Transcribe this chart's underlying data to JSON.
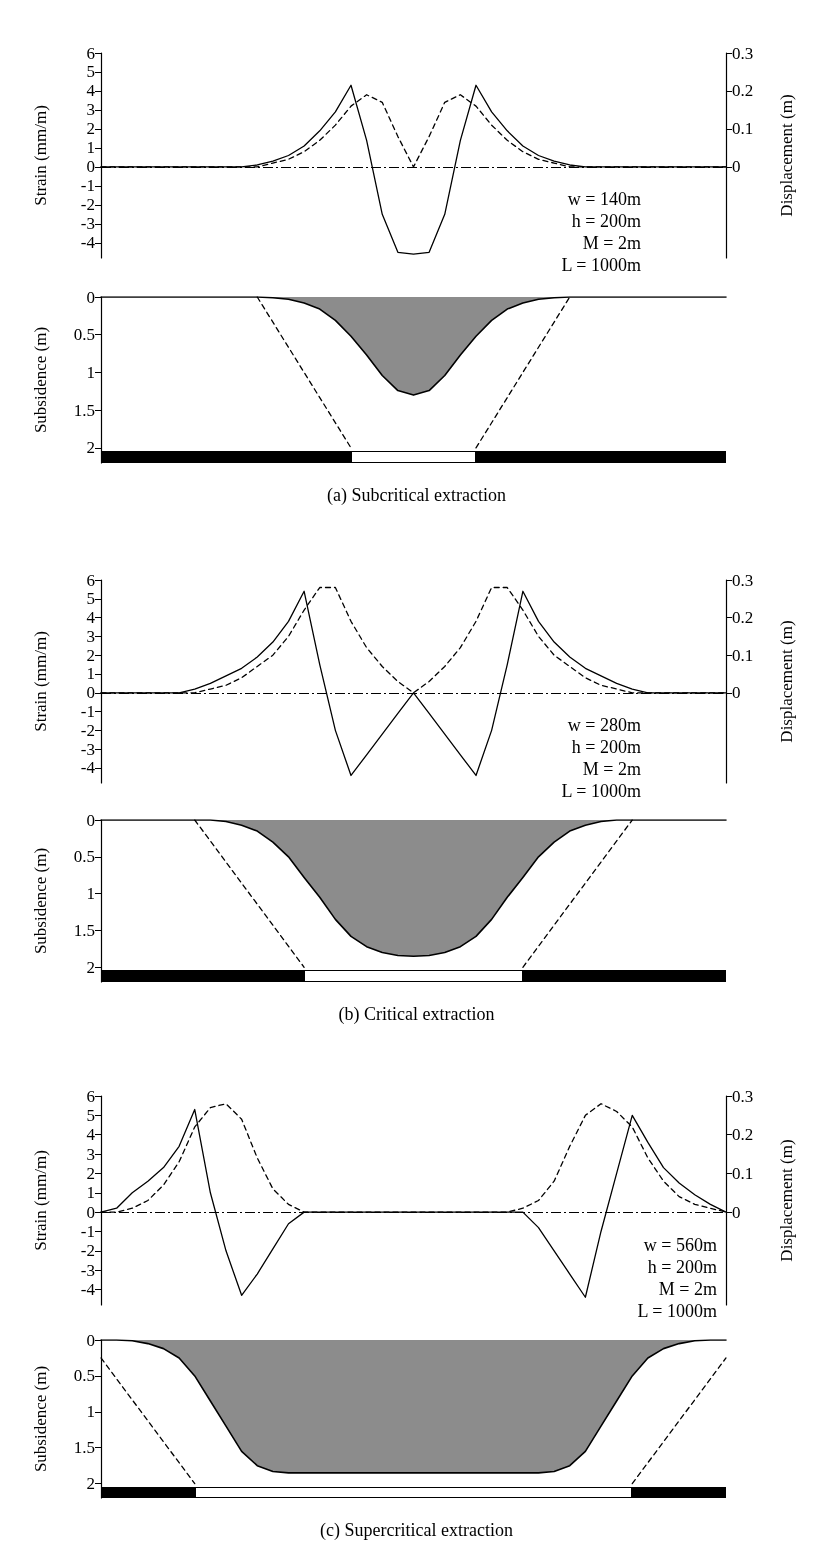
{
  "chart_data": [
    {
      "type": "line",
      "ylabel": "Strain (mm/m)",
      "y2label": "Displacement (m)",
      "categories": [
        null,
        null,
        null,
        null,
        null,
        null,
        null,
        null,
        null,
        null,
        null,
        null,
        null,
        null,
        null,
        null,
        null,
        null,
        null,
        null,
        null,
        null,
        null,
        null,
        null,
        null,
        null,
        null,
        null,
        null,
        null,
        null,
        null,
        null,
        null,
        null,
        null,
        null,
        null,
        null,
        null
      ],
      "series": [
        {
          "type": "line",
          "color": "#000000",
          "line_style": "solid",
          "values": [
            0,
            0,
            0,
            0,
            0,
            0,
            0,
            0,
            0,
            0,
            0.1,
            0.3,
            0.6,
            1.1,
            1.9,
            2.9,
            4.3,
            1.4,
            -2.5,
            -4.5,
            -4.6,
            -4.5,
            -2.5,
            1.4,
            4.3,
            2.9,
            1.9,
            1.1,
            0.6,
            0.3,
            0.1,
            0,
            0,
            0,
            0,
            0,
            0,
            0,
            0,
            0,
            0
          ]
        },
        {
          "type": "line",
          "color": "#000000",
          "line_style": "dashed",
          "axis": "y2",
          "values": [
            0,
            0,
            0,
            0,
            0,
            0,
            0,
            0,
            0,
            0,
            0,
            0.01,
            0.02,
            0.04,
            0.07,
            0.11,
            0.16,
            0.19,
            0.17,
            0.08,
            0,
            0.08,
            0.17,
            0.19,
            0.16,
            0.11,
            0.07,
            0.04,
            0.02,
            0.01,
            0,
            0,
            0,
            0,
            0,
            0,
            0,
            0,
            0,
            0,
            0
          ]
        }
      ],
      "ylim": [
        -4.8,
        6
      ],
      "yticks": [
        -4,
        -3,
        -2,
        -1,
        0,
        1,
        2,
        3,
        4,
        5,
        6
      ],
      "y2lim": [
        -0.24,
        0.3
      ],
      "y2ticks": [
        0,
        0.1,
        0.2,
        0.3
      ],
      "ref_lines": [
        {
          "axis": "y",
          "value": 0,
          "line_style": "dashed"
        }
      ],
      "annotations": [
        "w = 140m",
        "h = 200m",
        "M = 2m",
        "L = 1000m"
      ],
      "tick_labels": "y",
      "marker": "none",
      "grid": false
    },
    {
      "type": "area",
      "title": "(a) Subcritical extraction",
      "ylabel": "Subsidence (m)",
      "categories": [
        null,
        null,
        null,
        null,
        null,
        null,
        null,
        null,
        null,
        null,
        null,
        null,
        null,
        null,
        null,
        null,
        null,
        null,
        null,
        null,
        null,
        null,
        null,
        null,
        null,
        null,
        null,
        null,
        null,
        null,
        null,
        null,
        null,
        null,
        null,
        null,
        null,
        null,
        null,
        null,
        null
      ],
      "series": [
        {
          "type": "area",
          "color": "#8c8c8c",
          "values": [
            0,
            0,
            0,
            0,
            0,
            0,
            0,
            0,
            0,
            0,
            0,
            0.01,
            0.03,
            0.08,
            0.16,
            0.31,
            0.52,
            0.77,
            1.04,
            1.24,
            1.3,
            1.24,
            1.04,
            0.77,
            0.52,
            0.31,
            0.16,
            0.08,
            0.03,
            0.01,
            0,
            0,
            0,
            0,
            0,
            0,
            0,
            0,
            0,
            0,
            0
          ]
        },
        {
          "type": "line",
          "color": "#000000",
          "line_style": "dashed",
          "values": [
            null,
            null,
            null,
            null,
            null,
            null,
            null,
            null,
            null,
            null,
            0,
            null,
            null,
            null,
            null,
            null,
            2,
            null,
            null,
            null,
            null,
            null,
            null,
            null,
            null,
            null,
            null,
            null,
            null,
            null,
            null,
            null,
            null,
            null,
            null,
            null,
            null,
            null,
            null,
            null,
            null
          ]
        },
        {
          "type": "line",
          "color": "#000000",
          "line_style": "dashed",
          "values": [
            null,
            null,
            null,
            null,
            null,
            null,
            null,
            null,
            null,
            null,
            null,
            null,
            null,
            null,
            null,
            null,
            null,
            null,
            null,
            null,
            null,
            null,
            null,
            null,
            2,
            null,
            null,
            null,
            null,
            null,
            0,
            null,
            null,
            null,
            null,
            null,
            null,
            null,
            null,
            null,
            null
          ]
        }
      ],
      "ylim": [
        2.2,
        0
      ],
      "yticks": [
        0,
        0.5,
        1,
        1.5,
        2
      ],
      "tick_labels": "y",
      "marker": "none",
      "grid": false
    },
    {
      "type": "line",
      "ylabel": "Strain (mm/m)",
      "y2label": "Displacement (m)",
      "categories": [
        null,
        null,
        null,
        null,
        null,
        null,
        null,
        null,
        null,
        null,
        null,
        null,
        null,
        null,
        null,
        null,
        null,
        null,
        null,
        null,
        null,
        null,
        null,
        null,
        null,
        null,
        null,
        null,
        null,
        null,
        null,
        null,
        null,
        null,
        null,
        null,
        null,
        null,
        null,
        null,
        null
      ],
      "series": [
        {
          "type": "line",
          "color": "#000000",
          "line_style": "solid",
          "values": [
            0,
            0,
            0,
            0,
            0,
            0,
            0.2,
            0.5,
            0.9,
            1.3,
            1.9,
            2.7,
            3.8,
            5.4,
            1.5,
            -2.0,
            -4.4,
            -3.3,
            -2.2,
            -1.1,
            0,
            -1.1,
            -2.2,
            -3.3,
            -4.4,
            -2.0,
            1.5,
            5.4,
            3.8,
            2.7,
            1.9,
            1.3,
            0.9,
            0.5,
            0.2,
            0,
            0,
            0,
            0,
            0,
            0
          ]
        },
        {
          "type": "line",
          "color": "#000000",
          "line_style": "dashed",
          "axis": "y2",
          "values": [
            0,
            0,
            0,
            0,
            0,
            0,
            0,
            0.01,
            0.02,
            0.04,
            0.07,
            0.1,
            0.15,
            0.22,
            0.28,
            0.28,
            0.19,
            0.12,
            0.07,
            0.03,
            0,
            0.03,
            0.07,
            0.12,
            0.19,
            0.28,
            0.28,
            0.22,
            0.15,
            0.1,
            0.07,
            0.04,
            0.02,
            0.01,
            0,
            0,
            0,
            0,
            0,
            0,
            0
          ]
        }
      ],
      "ylim": [
        -4.8,
        6
      ],
      "yticks": [
        -4,
        -3,
        -2,
        -1,
        0,
        1,
        2,
        3,
        4,
        5,
        6
      ],
      "y2lim": [
        -0.24,
        0.3
      ],
      "y2ticks": [
        0,
        0.1,
        0.2,
        0.3
      ],
      "ref_lines": [
        {
          "axis": "y",
          "value": 0,
          "line_style": "dashed"
        }
      ],
      "annotations": [
        "w = 280m",
        "h = 200m",
        "M = 2m",
        "L = 1000m"
      ],
      "tick_labels": "y",
      "marker": "none",
      "grid": false
    },
    {
      "type": "area",
      "title": "(b) Critical extraction",
      "ylabel": "Subsidence (m)",
      "categories": [
        null,
        null,
        null,
        null,
        null,
        null,
        null,
        null,
        null,
        null,
        null,
        null,
        null,
        null,
        null,
        null,
        null,
        null,
        null,
        null,
        null,
        null,
        null,
        null,
        null,
        null,
        null,
        null,
        null,
        null,
        null,
        null,
        null,
        null,
        null,
        null,
        null,
        null,
        null,
        null,
        null
      ],
      "series": [
        {
          "type": "area",
          "color": "#8c8c8c",
          "values": [
            0,
            0,
            0,
            0,
            0,
            0,
            0,
            0,
            0.02,
            0.07,
            0.15,
            0.3,
            0.5,
            0.78,
            1.05,
            1.35,
            1.58,
            1.72,
            1.8,
            1.84,
            1.85,
            1.84,
            1.8,
            1.72,
            1.58,
            1.35,
            1.05,
            0.78,
            0.5,
            0.3,
            0.15,
            0.07,
            0.02,
            0,
            0,
            0,
            0,
            0,
            0,
            0,
            0
          ]
        },
        {
          "type": "line",
          "color": "#000000",
          "line_style": "dashed",
          "values": [
            null,
            null,
            null,
            null,
            null,
            null,
            0,
            null,
            null,
            null,
            null,
            null,
            null,
            2,
            null,
            null,
            null,
            null,
            null,
            null,
            null,
            null,
            null,
            null,
            null,
            null,
            null,
            null,
            null,
            null,
            null,
            null,
            null,
            null,
            null,
            null,
            null,
            null,
            null,
            null,
            null
          ]
        },
        {
          "type": "line",
          "color": "#000000",
          "line_style": "dashed",
          "values": [
            null,
            null,
            null,
            null,
            null,
            null,
            null,
            null,
            null,
            null,
            null,
            null,
            null,
            null,
            null,
            null,
            null,
            null,
            null,
            null,
            null,
            null,
            null,
            null,
            null,
            null,
            null,
            2,
            null,
            null,
            null,
            null,
            null,
            null,
            0,
            null,
            null,
            null,
            null,
            null,
            null
          ]
        }
      ],
      "ylim": [
        2.2,
        0
      ],
      "yticks": [
        0,
        0.5,
        1,
        1.5,
        2
      ],
      "tick_labels": "y",
      "marker": "none",
      "grid": false
    },
    {
      "type": "line",
      "ylabel": "Strain (mm/m)",
      "y2label": "Displacement (m)",
      "categories": [
        null,
        null,
        null,
        null,
        null,
        null,
        null,
        null,
        null,
        null,
        null,
        null,
        null,
        null,
        null,
        null,
        null,
        null,
        null,
        null,
        null,
        null,
        null,
        null,
        null,
        null,
        null,
        null,
        null,
        null,
        null,
        null,
        null,
        null,
        null,
        null,
        null,
        null,
        null,
        null,
        null
      ],
      "series": [
        {
          "type": "line",
          "color": "#000000",
          "line_style": "solid",
          "values": [
            0,
            0.2,
            1.0,
            1.6,
            2.3,
            3.4,
            5.3,
            1.0,
            -2.0,
            -4.3,
            -3.2,
            -1.9,
            -0.6,
            0,
            0,
            0,
            0,
            0,
            0,
            0,
            0,
            0,
            0,
            0,
            0,
            0,
            0,
            0,
            -0.8,
            -2.0,
            -3.2,
            -4.4,
            -1.0,
            2.0,
            5.0,
            3.6,
            2.3,
            1.5,
            0.9,
            0.4,
            0
          ]
        },
        {
          "type": "line",
          "color": "#000000",
          "line_style": "dashed",
          "axis": "y2",
          "values": [
            0,
            0,
            0.01,
            0.03,
            0.07,
            0.13,
            0.22,
            0.27,
            0.28,
            0.24,
            0.14,
            0.06,
            0.02,
            0,
            0,
            0,
            0,
            0,
            0,
            0,
            0,
            0,
            0,
            0,
            0,
            0,
            0,
            0.01,
            0.03,
            0.08,
            0.17,
            0.25,
            0.28,
            0.26,
            0.22,
            0.14,
            0.08,
            0.04,
            0.02,
            0.01,
            0
          ]
        }
      ],
      "ylim": [
        -4.8,
        6
      ],
      "yticks": [
        -4,
        -3,
        -2,
        -1,
        0,
        1,
        2,
        3,
        4,
        5,
        6
      ],
      "y2lim": [
        -0.24,
        0.3
      ],
      "y2ticks": [
        0,
        0.1,
        0.2,
        0.3
      ],
      "ref_lines": [
        {
          "axis": "y",
          "value": 0,
          "line_style": "dashed"
        }
      ],
      "annotations": [
        "w = 560m",
        "h = 200m",
        "M = 2m",
        "L = 1000m"
      ],
      "tick_labels": "y",
      "marker": "none",
      "grid": false
    },
    {
      "type": "area",
      "title": "(c) Supercritical extraction",
      "ylabel": "Subsidence (m)",
      "categories": [
        null,
        null,
        null,
        null,
        null,
        null,
        null,
        null,
        null,
        null,
        null,
        null,
        null,
        null,
        null,
        null,
        null,
        null,
        null,
        null,
        null,
        null,
        null,
        null,
        null,
        null,
        null,
        null,
        null,
        null,
        null,
        null,
        null,
        null,
        null,
        null,
        null,
        null,
        null,
        null,
        null
      ],
      "series": [
        {
          "type": "area",
          "color": "#8c8c8c",
          "values": [
            0,
            0,
            0.01,
            0.05,
            0.12,
            0.25,
            0.5,
            0.85,
            1.2,
            1.55,
            1.75,
            1.83,
            1.85,
            1.85,
            1.85,
            1.85,
            1.85,
            1.85,
            1.85,
            1.85,
            1.85,
            1.85,
            1.85,
            1.85,
            1.85,
            1.85,
            1.85,
            1.85,
            1.85,
            1.83,
            1.75,
            1.55,
            1.2,
            0.85,
            0.5,
            0.25,
            0.12,
            0.05,
            0.01,
            0,
            0
          ]
        },
        {
          "type": "line",
          "color": "#000000",
          "line_style": "dashed",
          "values": [
            0.25,
            null,
            null,
            null,
            null,
            null,
            2,
            null,
            null,
            null,
            null,
            null,
            null,
            null,
            null,
            null,
            null,
            null,
            null,
            null,
            null,
            null,
            null,
            null,
            null,
            null,
            null,
            null,
            null,
            null,
            null,
            null,
            null,
            null,
            null,
            null,
            null,
            null,
            null,
            null,
            null
          ]
        },
        {
          "type": "line",
          "color": "#000000",
          "line_style": "dashed",
          "values": [
            null,
            null,
            null,
            null,
            null,
            null,
            null,
            null,
            null,
            null,
            null,
            null,
            null,
            null,
            null,
            null,
            null,
            null,
            null,
            null,
            null,
            null,
            null,
            null,
            null,
            null,
            null,
            null,
            null,
            null,
            null,
            null,
            null,
            null,
            2,
            null,
            null,
            null,
            null,
            null,
            0.25
          ]
        }
      ],
      "ylim": [
        2.2,
        0
      ],
      "yticks": [
        0,
        0.5,
        1,
        1.5,
        2
      ],
      "tick_labels": "y",
      "marker": "none",
      "grid": false
    }
  ]
}
